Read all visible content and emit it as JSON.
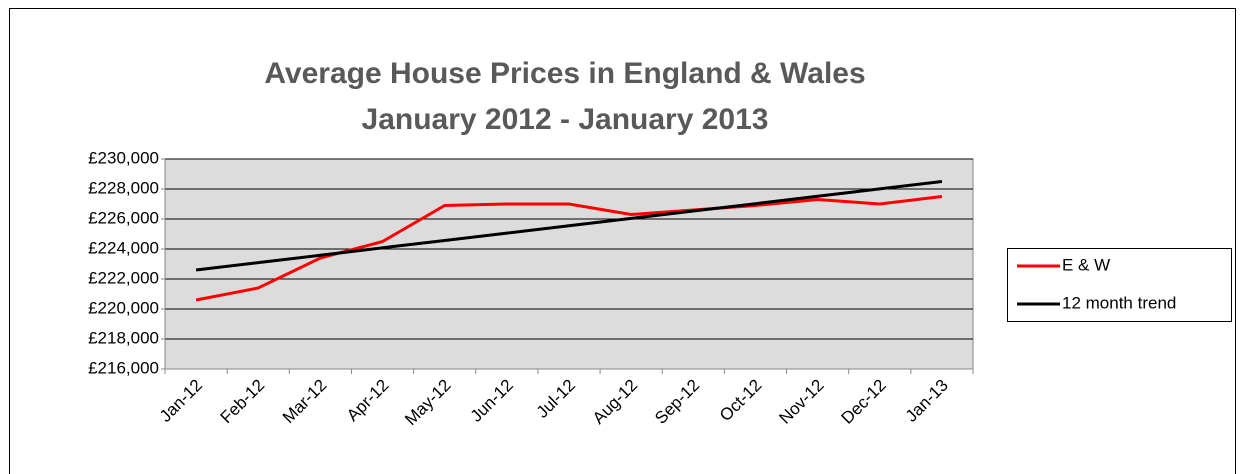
{
  "chart_data": {
    "type": "line",
    "title": "Average House Prices in England & Wales",
    "subtitle": "January 2012 - January 2013",
    "categories": [
      "Jan-12",
      "Feb-12",
      "Mar-12",
      "Apr-12",
      "May-12",
      "Jun-12",
      "Jul-12",
      "Aug-12",
      "Sep-12",
      "Oct-12",
      "Nov-12",
      "Dec-12",
      "Jan-13"
    ],
    "series": [
      {
        "name": "E & W",
        "color": "#ff0000",
        "values": [
          220600,
          221400,
          223400,
          224500,
          226900,
          227000,
          227000,
          226300,
          226600,
          226900,
          227300,
          227000,
          227500
        ]
      },
      {
        "name": "12 month trend",
        "color": "#000000",
        "values": [
          222600,
          223090,
          223580,
          224080,
          224570,
          225060,
          225550,
          226040,
          226530,
          227020,
          227520,
          228010,
          228500
        ]
      }
    ],
    "ylim": [
      216000,
      230000
    ],
    "yticks": [
      {
        "value": 216000,
        "label": "£216,000"
      },
      {
        "value": 218000,
        "label": "£218,000"
      },
      {
        "value": 220000,
        "label": "£220,000"
      },
      {
        "value": 222000,
        "label": "£222,000"
      },
      {
        "value": 224000,
        "label": "£224,000"
      },
      {
        "value": 226000,
        "label": "£226,000"
      },
      {
        "value": 228000,
        "label": "£228,000"
      },
      {
        "value": 230000,
        "label": "£230,000"
      }
    ],
    "grid": true,
    "legend": "right"
  }
}
